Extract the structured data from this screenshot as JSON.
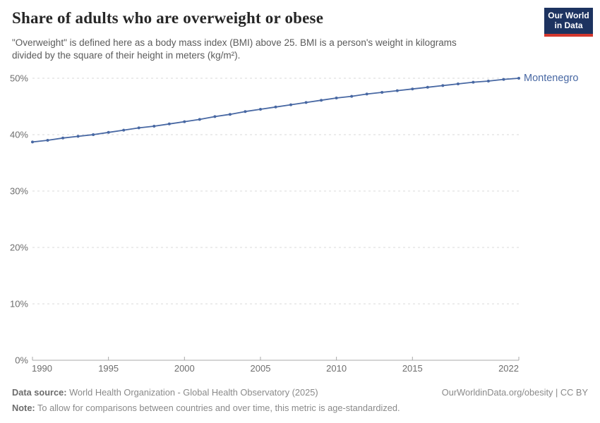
{
  "header": {
    "title": "Share of adults who are overweight or obese",
    "subtitle_line1": "\"Overweight\" is defined here as a body mass index (BMI) above 25. BMI is a person's weight in kilograms",
    "subtitle_line2": "divided by the square of their height in meters (kg/m²)."
  },
  "logo": {
    "line1": "Our World",
    "line2": "in Data",
    "bg_color": "#1d3360",
    "bar_color": "#d4382e",
    "text_color": "#ffffff"
  },
  "chart_data": {
    "type": "line",
    "title": "Share of adults who are overweight or obese",
    "x_years": [
      1990,
      1991,
      1992,
      1993,
      1994,
      1995,
      1996,
      1997,
      1998,
      1999,
      2000,
      2001,
      2002,
      2003,
      2004,
      2005,
      2006,
      2007,
      2008,
      2009,
      2010,
      2011,
      2012,
      2013,
      2014,
      2015,
      2016,
      2017,
      2018,
      2019,
      2020,
      2021,
      2022
    ],
    "series": [
      {
        "name": "Montenegro",
        "color": "#4868a3",
        "values": [
          38.7,
          39.0,
          39.4,
          39.7,
          40.0,
          40.4,
          40.8,
          41.2,
          41.5,
          41.9,
          42.3,
          42.7,
          43.2,
          43.6,
          44.1,
          44.5,
          44.9,
          45.3,
          45.7,
          46.1,
          46.5,
          46.8,
          47.2,
          47.5,
          47.8,
          48.1,
          48.4,
          48.7,
          49.0,
          49.3,
          49.5,
          49.8,
          50.0
        ]
      }
    ],
    "ylim": [
      0,
      50
    ],
    "yticks": [
      0,
      10,
      20,
      30,
      40,
      50
    ],
    "ytick_suffix": "%",
    "xticks": [
      1990,
      1995,
      2000,
      2005,
      2010,
      2015,
      2022
    ],
    "grid": "horizontal-dashed",
    "legend": "label-at-line-end",
    "axis_color": "#a8a8a8",
    "grid_color": "#d9d9d9",
    "tick_label_color": "#6e6e6e"
  },
  "footer": {
    "datasource_label": "Data source:",
    "datasource_text": " World Health Organization - Global Health Observatory (2025)",
    "note_label": "Note:",
    "note_text": " To allow for comparisons between countries and over time, this metric is age-standardized.",
    "rights": "OurWorldinData.org/obesity | CC BY"
  }
}
